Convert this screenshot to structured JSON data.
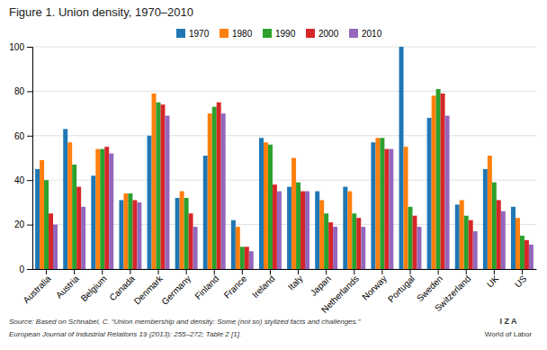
{
  "chart_data": {
    "type": "bar",
    "title": "Figure 1. Union density, 1970–2010",
    "categories": [
      "Australia",
      "Austria",
      "Belgium",
      "Canada",
      "Denmark",
      "Germany",
      "Finland",
      "France",
      "Ireland",
      "Italy",
      "Japan",
      "Netherlands",
      "Norway",
      "Portugal",
      "Sweden",
      "Switzerland",
      "UK",
      "US"
    ],
    "series": [
      {
        "name": "1970",
        "values": [
          45,
          63,
          42,
          31,
          60,
          32,
          51,
          22,
          59,
          37,
          35,
          37,
          57,
          100,
          68,
          29,
          45,
          28
        ]
      },
      {
        "name": "1980",
        "values": [
          49,
          57,
          54,
          34,
          79,
          35,
          70,
          19,
          57,
          50,
          31,
          35,
          59,
          55,
          78,
          31,
          51,
          23
        ]
      },
      {
        "name": "1990",
        "values": [
          40,
          47,
          54,
          34,
          75,
          32,
          73,
          10,
          56,
          39,
          25,
          25,
          59,
          28,
          81,
          24,
          39,
          15
        ]
      },
      {
        "name": "2000",
        "values": [
          25,
          37,
          55,
          31,
          74,
          25,
          75,
          10,
          38,
          35,
          21,
          23,
          54,
          24,
          79,
          22,
          31,
          13
        ]
      },
      {
        "name": "2010",
        "values": [
          20,
          28,
          52,
          30,
          69,
          19,
          70,
          8,
          35,
          35,
          19,
          19,
          54,
          19,
          69,
          17,
          26,
          11
        ]
      }
    ],
    "ylim": [
      0,
      100
    ],
    "yticks": [
      0,
      20,
      40,
      60,
      80,
      100
    ],
    "grid": true,
    "legend": "top",
    "annotations": [
      "Source: Based on Schnabel, C. “Union membership and density: Some (not so) stylized facts and challenges.”",
      "European Journal of Industrial Relations 19 (2013): 255–272; Table 2 [1].",
      "I Z A",
      "World of Labor"
    ]
  }
}
